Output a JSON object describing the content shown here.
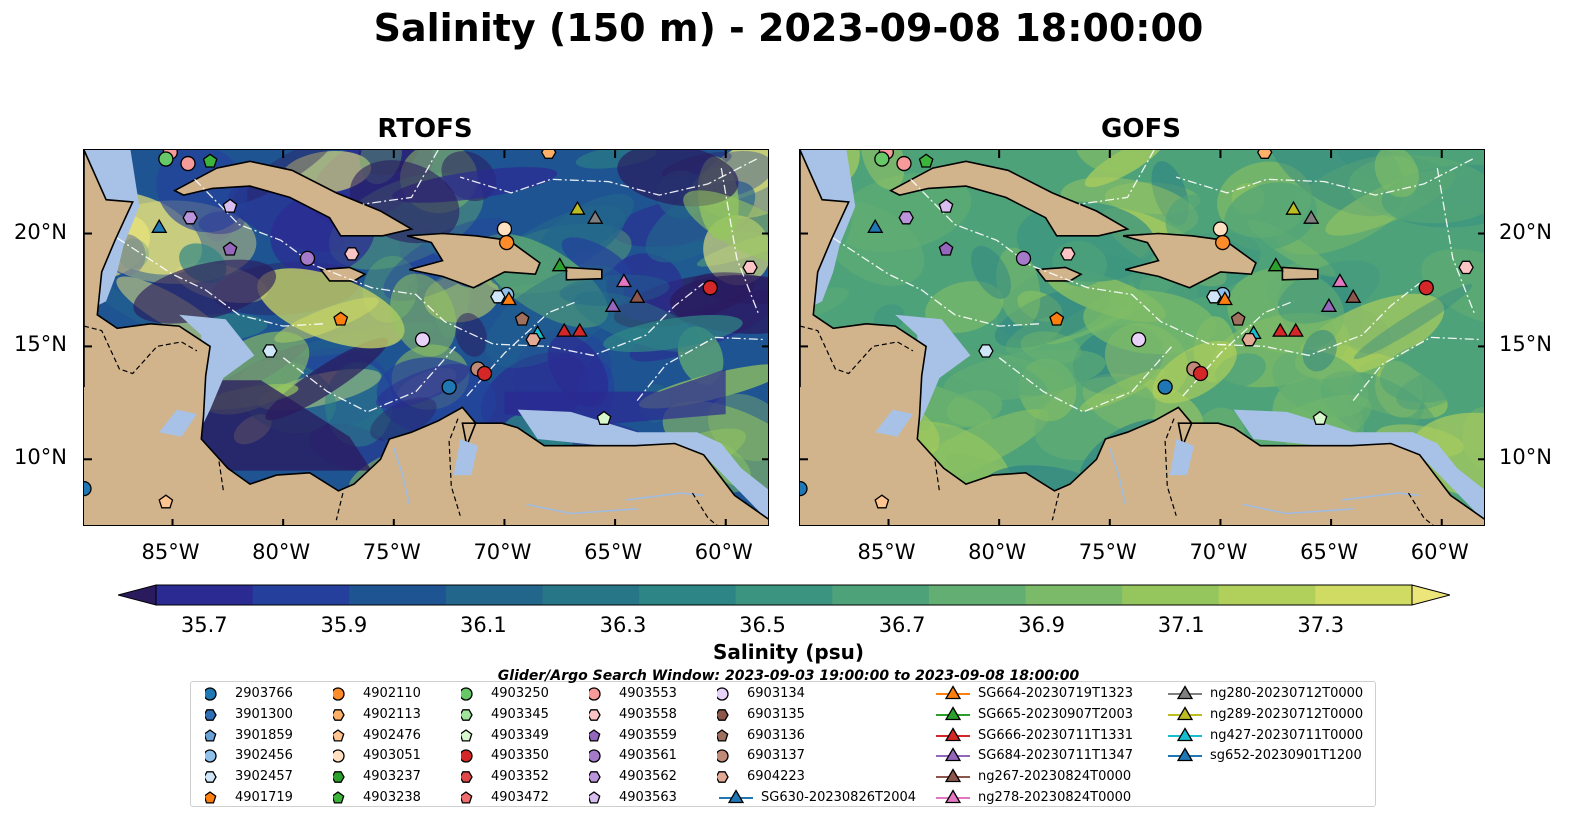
{
  "title": "Salinity (150 m) - 2023-09-08 18:00:00",
  "panels": [
    {
      "title": "RTOFS",
      "field": "rtofs"
    },
    {
      "title": "GOFS",
      "field": "gofs"
    }
  ],
  "axes": {
    "lon_ticks": [
      "85°W",
      "80°W",
      "75°W",
      "70°W",
      "65°W",
      "60°W"
    ],
    "lon_values": [
      -85,
      -80,
      -75,
      -70,
      -65,
      -60
    ],
    "lat_ticks": [
      "20°N",
      "15°N",
      "10°N"
    ],
    "lat_values": [
      20,
      15,
      10
    ],
    "lon_range": [
      -89,
      -58
    ],
    "lat_range": [
      7,
      23.7
    ]
  },
  "colorbar": {
    "label": "Salinity (psu)",
    "ticks": [
      "35.7",
      "35.9",
      "36.1",
      "36.3",
      "36.5",
      "36.7",
      "36.9",
      "37.1",
      "37.3"
    ],
    "min": 35.7,
    "max": 37.3,
    "step": 0.1,
    "colors": [
      "#2a1a5e",
      "#2b2a92",
      "#24409c",
      "#1f5493",
      "#22668c",
      "#277688",
      "#2e8585",
      "#3b9480",
      "#4ea27a",
      "#63ae72",
      "#7bba68",
      "#95c65e",
      "#b1d05b",
      "#d0db63",
      "#ebe57a"
    ],
    "extend": "both"
  },
  "legend": {
    "title": "Glider/Argo Search Window: 2023-09-03 19:00:00 to 2023-09-08 18:00:00",
    "items": [
      {
        "label": "2903766",
        "marker": "circle",
        "color": "#1f77b4"
      },
      {
        "label": "3901300",
        "marker": "hexagon",
        "color": "#2f6fb5"
      },
      {
        "label": "3901859",
        "marker": "pentagon",
        "color": "#6aa2d8"
      },
      {
        "label": "3902456",
        "marker": "circle",
        "color": "#8fc1ea"
      },
      {
        "label": "3902457",
        "marker": "hexagon",
        "color": "#cfe6f8"
      },
      {
        "label": "4901719",
        "marker": "pentagon",
        "color": "#ff7f0e"
      },
      {
        "label": "4902110",
        "marker": "circle",
        "color": "#ff8c2a"
      },
      {
        "label": "4902113",
        "marker": "hexagon",
        "color": "#ffb068"
      },
      {
        "label": "4902476",
        "marker": "pentagon",
        "color": "#ffc48f"
      },
      {
        "label": "4903051",
        "marker": "circle",
        "color": "#ffe0c0"
      },
      {
        "label": "4903237",
        "marker": "hexagon",
        "color": "#2ca02c"
      },
      {
        "label": "4903238",
        "marker": "pentagon",
        "color": "#3cb43c"
      },
      {
        "label": "4903250",
        "marker": "circle",
        "color": "#67c867"
      },
      {
        "label": "4903345",
        "marker": "hexagon",
        "color": "#a0e39a"
      },
      {
        "label": "4903349",
        "marker": "pentagon",
        "color": "#d8f7cc"
      },
      {
        "label": "4903350",
        "marker": "circle",
        "color": "#d62728"
      },
      {
        "label": "4903352",
        "marker": "hexagon",
        "color": "#e04848"
      },
      {
        "label": "4903472",
        "marker": "pentagon",
        "color": "#ef6d6d"
      },
      {
        "label": "4903553",
        "marker": "circle",
        "color": "#f79a9a"
      },
      {
        "label": "4903558",
        "marker": "hexagon",
        "color": "#fcc4c4"
      },
      {
        "label": "4903559",
        "marker": "pentagon",
        "color": "#9467bd"
      },
      {
        "label": "4903561",
        "marker": "circle",
        "color": "#a57ac9"
      },
      {
        "label": "4903562",
        "marker": "hexagon",
        "color": "#bb95dc"
      },
      {
        "label": "4903563",
        "marker": "pentagon",
        "color": "#d8bdf0"
      },
      {
        "label": "6903134",
        "marker": "circle",
        "color": "#e9d2f7"
      },
      {
        "label": "6903135",
        "marker": "hexagon",
        "color": "#8c564b"
      },
      {
        "label": "6903136",
        "marker": "pentagon",
        "color": "#a0705f"
      },
      {
        "label": "6903137",
        "marker": "circle",
        "color": "#c08a78"
      },
      {
        "label": "6904223",
        "marker": "hexagon",
        "color": "#e2a995"
      },
      {
        "label": "SG630-20230826T2004",
        "marker": "triangle",
        "color": "#1f77b4",
        "line": true
      },
      {
        "label": "SG664-20230719T1323",
        "marker": "triangle",
        "color": "#ff7f0e",
        "line": true
      },
      {
        "label": "SG665-20230907T2003",
        "marker": "triangle",
        "color": "#2ca02c",
        "line": true
      },
      {
        "label": "SG666-20230711T1331",
        "marker": "triangle",
        "color": "#d62728",
        "line": true
      },
      {
        "label": "SG684-20230711T1347",
        "marker": "triangle",
        "color": "#9467bd",
        "line": true
      },
      {
        "label": "ng267-20230824T0000",
        "marker": "triangle",
        "color": "#8c564b",
        "line": true
      },
      {
        "label": "ng278-20230824T0000",
        "marker": "triangle",
        "color": "#e377c2",
        "line": true
      },
      {
        "label": "ng280-20230712T0000",
        "marker": "triangle",
        "color": "#7f7f7f",
        "line": true
      },
      {
        "label": "ng289-20230712T0000",
        "marker": "triangle",
        "color": "#bcbd22",
        "line": true
      },
      {
        "label": "ng427-20230711T0000",
        "marker": "triangle",
        "color": "#17becf",
        "line": true
      },
      {
        "label": "sg652-20230901T1200",
        "marker": "triangle",
        "color": "#1f77b4",
        "line": true
      }
    ]
  },
  "markers": [
    {
      "label": "4903553",
      "lon": -85.1,
      "lat": 23.6
    },
    {
      "label": "4903250",
      "lon": -85.3,
      "lat": 23.3
    },
    {
      "label": "4903553",
      "lon": -84.3,
      "lat": 23.1
    },
    {
      "label": "4903238",
      "lon": -83.3,
      "lat": 23.2
    },
    {
      "label": "4902113",
      "lon": -68.0,
      "lat": 23.6
    },
    {
      "label": "4903562",
      "lon": -84.2,
      "lat": 20.7
    },
    {
      "label": "4903563",
      "lon": -82.4,
      "lat": 21.2
    },
    {
      "label": "SG630-20230826T2004",
      "lon": -85.6,
      "lat": 20.3
    },
    {
      "label": "4903559",
      "lon": -82.4,
      "lat": 19.3
    },
    {
      "label": "4903561",
      "lon": -78.9,
      "lat": 18.9
    },
    {
      "label": "4903558",
      "lon": -76.9,
      "lat": 19.1
    },
    {
      "label": "4903051",
      "lon": -70.0,
      "lat": 20.2
    },
    {
      "label": "4902110",
      "lon": -69.9,
      "lat": 19.6
    },
    {
      "label": "ng289-20230712T0000",
      "lon": -66.7,
      "lat": 21.1
    },
    {
      "label": "ng280-20230712T0000",
      "lon": -65.9,
      "lat": 20.7
    },
    {
      "label": "SG665-20230907T2003",
      "lon": -67.5,
      "lat": 18.6
    },
    {
      "label": "4903558",
      "lon": -58.9,
      "lat": 18.5
    },
    {
      "label": "ng278-20230824T0000",
      "lon": -64.6,
      "lat": 17.9
    },
    {
      "label": "4903350",
      "lon": -60.7,
      "lat": 17.6
    },
    {
      "label": "ng267-20230824T0000",
      "lon": -64.0,
      "lat": 17.2
    },
    {
      "label": "SG684-20230711T1347",
      "lon": -65.1,
      "lat": 16.8
    },
    {
      "label": "3902456",
      "lon": -69.9,
      "lat": 17.3
    },
    {
      "label": "3902457",
      "lon": -70.3,
      "lat": 17.2
    },
    {
      "label": "SG664-20230719T1323",
      "lon": -69.8,
      "lat": 17.1
    },
    {
      "label": "6903136",
      "lon": -69.2,
      "lat": 16.2
    },
    {
      "label": "4901719",
      "lon": -77.4,
      "lat": 16.2
    },
    {
      "label": "SG666-20230711T1331",
      "lon": -67.3,
      "lat": 15.7
    },
    {
      "label": "SG666-20230711T1331",
      "lon": -66.6,
      "lat": 15.7
    },
    {
      "label": "ng427-20230711T0000",
      "lon": -68.5,
      "lat": 15.6
    },
    {
      "label": "6904223",
      "lon": -68.7,
      "lat": 15.3
    },
    {
      "label": "6903134",
      "lon": -73.7,
      "lat": 15.3
    },
    {
      "label": "3902457",
      "lon": -80.6,
      "lat": 14.8
    },
    {
      "label": "6903137",
      "lon": -71.2,
      "lat": 14.0
    },
    {
      "label": "4903350",
      "lon": -70.9,
      "lat": 13.8
    },
    {
      "label": "2903766",
      "lon": -72.5,
      "lat": 13.2
    },
    {
      "label": "4903349",
      "lon": -65.5,
      "lat": 11.8
    },
    {
      "label": "2903766",
      "lon": -89.0,
      "lat": 8.7
    },
    {
      "label": "4902476",
      "lon": -85.3,
      "lat": 8.1
    }
  ]
}
